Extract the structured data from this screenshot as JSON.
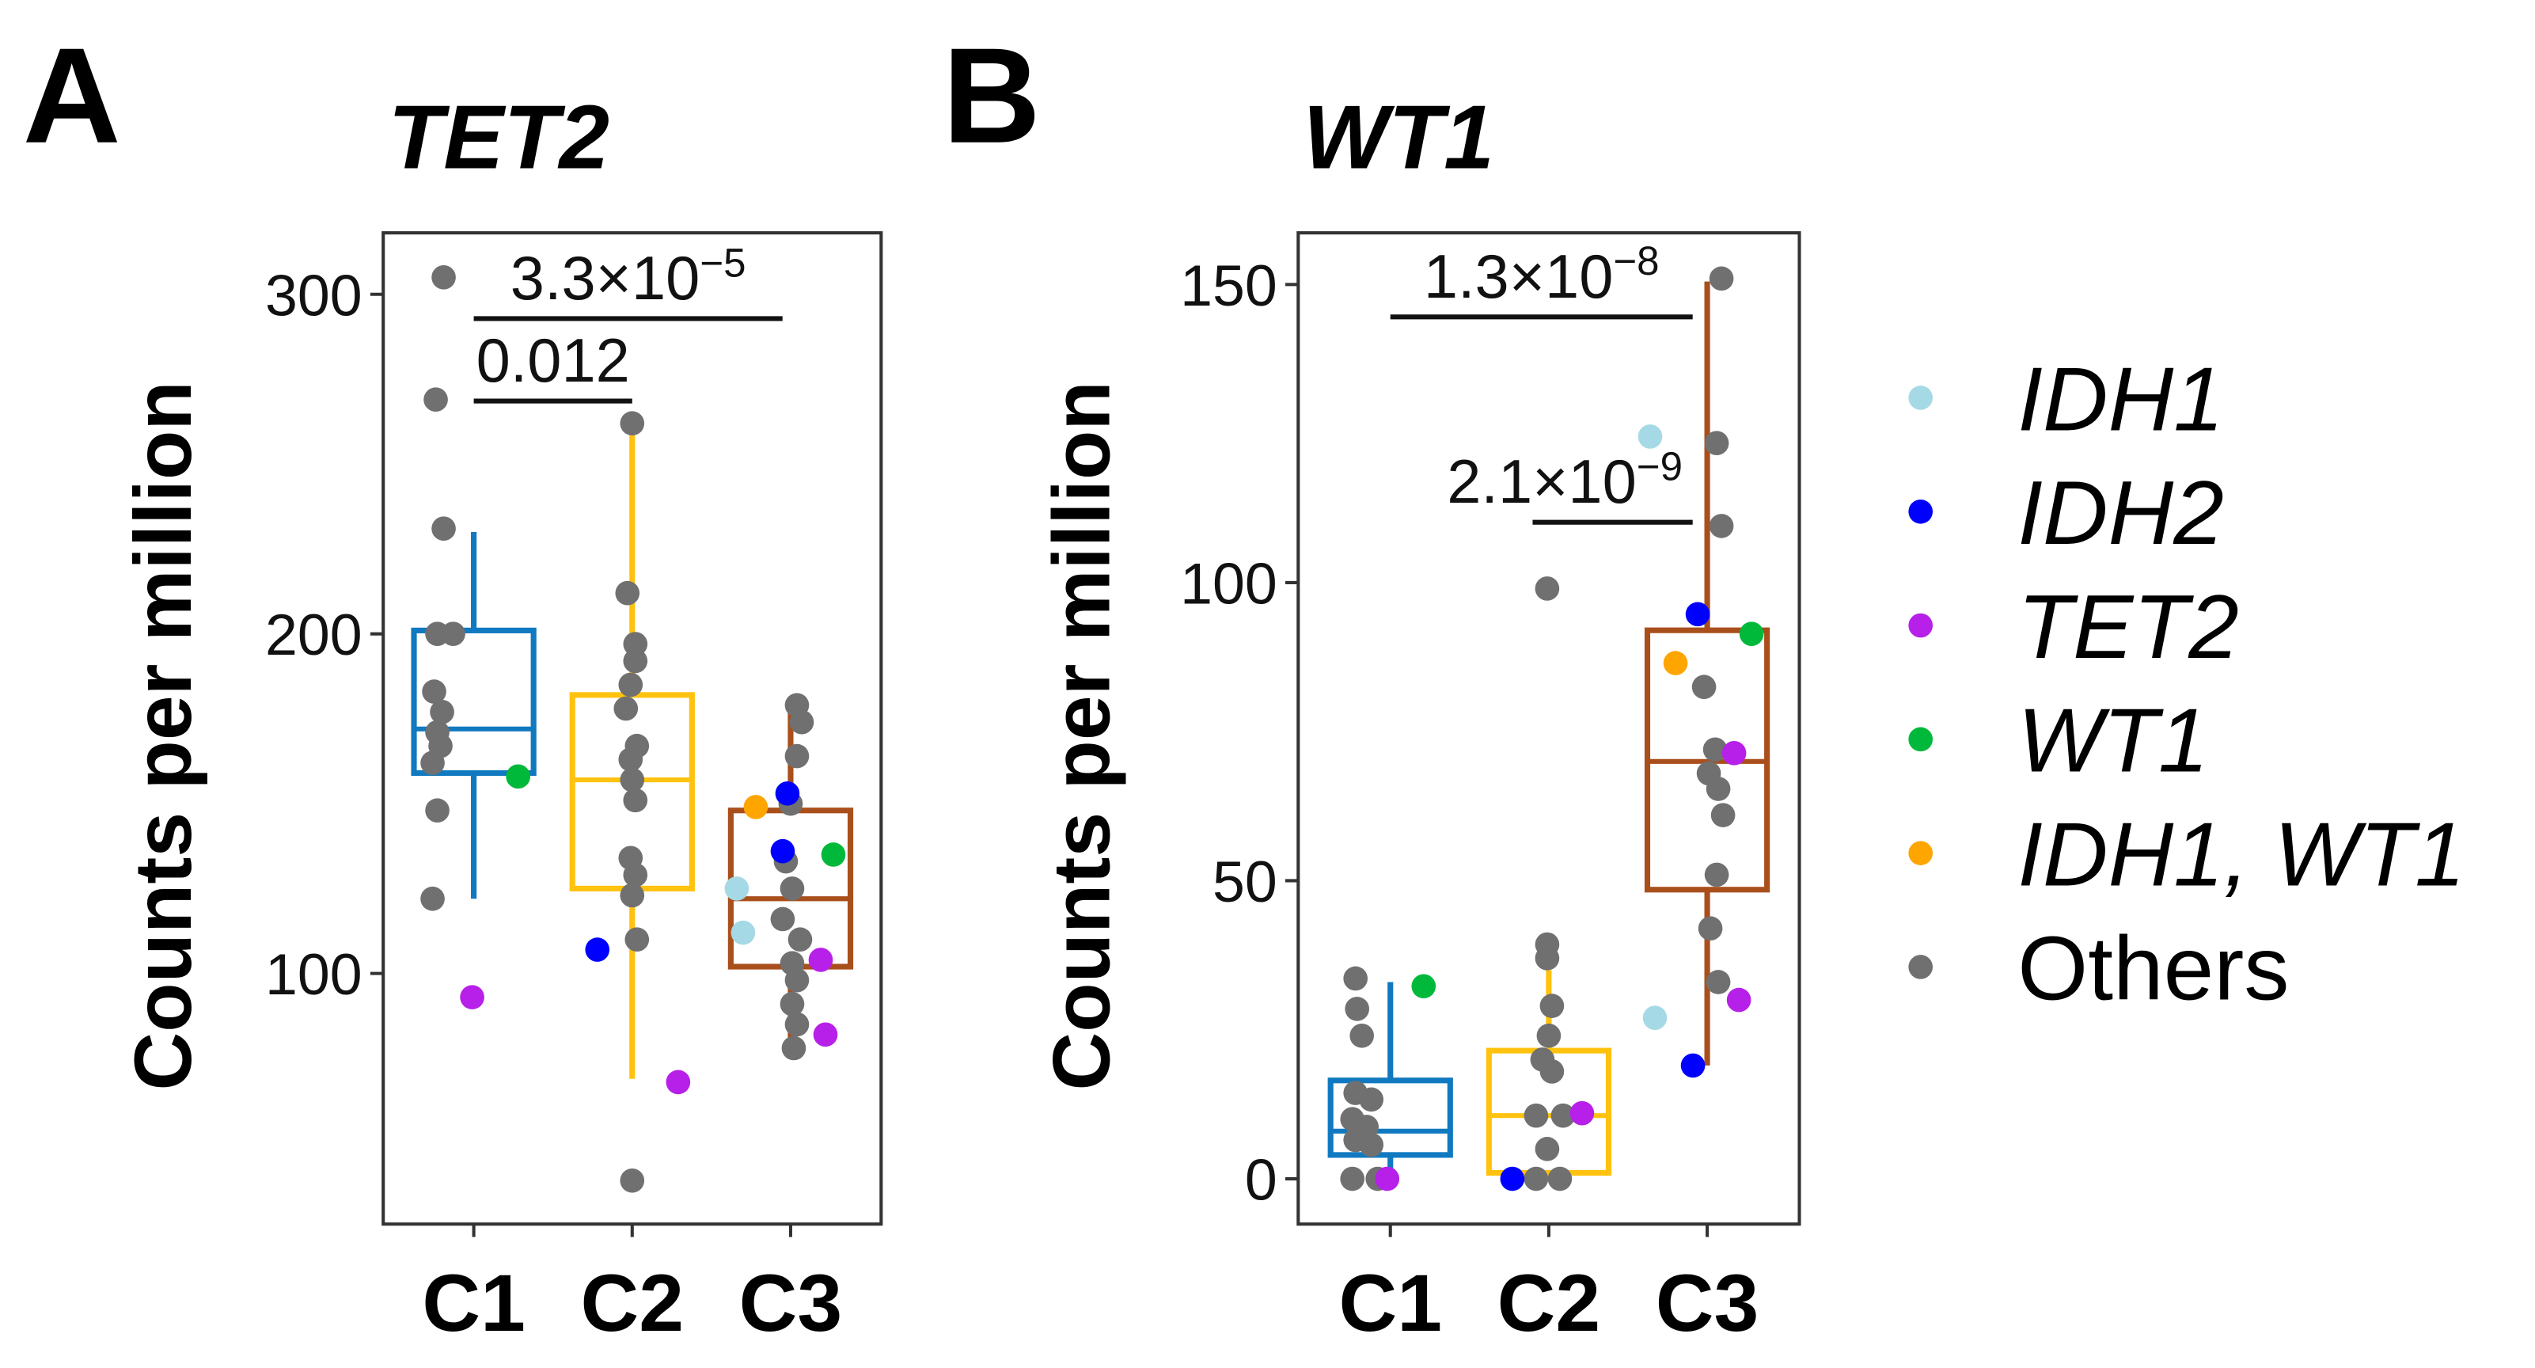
{
  "legend": {
    "title": "",
    "placement": "right",
    "entries": [
      {
        "key": "IDH1",
        "label": "IDH1",
        "italic": true,
        "color": "#a6d9e6"
      },
      {
        "key": "IDH2",
        "label": "IDH2",
        "italic": true,
        "color": "#0000ff"
      },
      {
        "key": "TET2",
        "label": "TET2",
        "italic": true,
        "color": "#b620e8"
      },
      {
        "key": "WT1",
        "label": "WT1",
        "italic": true,
        "color": "#00b93a"
      },
      {
        "key": "IDH1_WT1",
        "label": "IDH1, WT1",
        "italic": true,
        "color": "#ffa500"
      },
      {
        "key": "Others",
        "label": "Others",
        "italic": false,
        "color": "#707070"
      }
    ]
  },
  "group_colors": {
    "C1": "#1179c0",
    "C2": "#ffc20e",
    "C3": "#a94f1b"
  },
  "chart_data": [
    {
      "type": "box",
      "panel": "A",
      "title": "TET2",
      "xlabel": "",
      "ylabel": "Counts per million",
      "categories": [
        "C1",
        "C2",
        "C3"
      ],
      "ylim": [
        30,
        315
      ],
      "yticks": [
        100,
        200,
        300
      ],
      "grid": false,
      "boxes": [
        {
          "group": "C1",
          "whisker_low": 122,
          "q1": 159,
          "median": 172,
          "q3": 201,
          "whisker_high": 230
        },
        {
          "group": "C2",
          "whisker_low": 69,
          "q1": 125,
          "median": 157,
          "q3": 182,
          "whisker_high": 262
        },
        {
          "group": "C3",
          "whisker_low": 77,
          "q1": 102,
          "median": 122,
          "q3": 148,
          "whisker_high": 181
        }
      ],
      "points": [
        {
          "g": "C1",
          "j": -0.19,
          "v": 305,
          "m": "Others"
        },
        {
          "g": "C1",
          "j": -0.24,
          "v": 269,
          "m": "Others"
        },
        {
          "g": "C1",
          "j": -0.19,
          "v": 231,
          "m": "Others"
        },
        {
          "g": "C1",
          "j": -0.23,
          "v": 200,
          "m": "Others"
        },
        {
          "g": "C1",
          "j": -0.13,
          "v": 200,
          "m": "Others"
        },
        {
          "g": "C1",
          "j": -0.25,
          "v": 183,
          "m": "Others"
        },
        {
          "g": "C1",
          "j": -0.2,
          "v": 177,
          "m": "Others"
        },
        {
          "g": "C1",
          "j": -0.23,
          "v": 171,
          "m": "Others"
        },
        {
          "g": "C1",
          "j": -0.21,
          "v": 167,
          "m": "Others"
        },
        {
          "g": "C1",
          "j": -0.26,
          "v": 162,
          "m": "Others"
        },
        {
          "g": "C1",
          "j": -0.23,
          "v": 148,
          "m": "Others"
        },
        {
          "g": "C1",
          "j": -0.26,
          "v": 122,
          "m": "Others"
        },
        {
          "g": "C1",
          "j": 0.28,
          "v": 158,
          "m": "WT1"
        },
        {
          "g": "C1",
          "j": -0.01,
          "v": 93,
          "m": "TET2"
        },
        {
          "g": "C2",
          "j": 0,
          "v": 262,
          "m": "Others"
        },
        {
          "g": "C2",
          "j": -0.03,
          "v": 212,
          "m": "Others"
        },
        {
          "g": "C2",
          "j": 0.02,
          "v": 197,
          "m": "Others"
        },
        {
          "g": "C2",
          "j": 0.02,
          "v": 192,
          "m": "Others"
        },
        {
          "g": "C2",
          "j": -0.01,
          "v": 185,
          "m": "Others"
        },
        {
          "g": "C2",
          "j": -0.04,
          "v": 178,
          "m": "Others"
        },
        {
          "g": "C2",
          "j": 0.03,
          "v": 167,
          "m": "Others"
        },
        {
          "g": "C2",
          "j": -0.01,
          "v": 163,
          "m": "Others"
        },
        {
          "g": "C2",
          "j": 0,
          "v": 157,
          "m": "Others"
        },
        {
          "g": "C2",
          "j": 0.02,
          "v": 151,
          "m": "Others"
        },
        {
          "g": "C2",
          "j": -0.01,
          "v": 134,
          "m": "Others"
        },
        {
          "g": "C2",
          "j": 0.02,
          "v": 129,
          "m": "Others"
        },
        {
          "g": "C2",
          "j": 0,
          "v": 123,
          "m": "Others"
        },
        {
          "g": "C2",
          "j": 0.03,
          "v": 110,
          "m": "Others"
        },
        {
          "g": "C2",
          "j": 0,
          "v": 39,
          "m": "Others"
        },
        {
          "g": "C2",
          "j": -0.22,
          "v": 107,
          "m": "IDH2"
        },
        {
          "g": "C2",
          "j": 0.29,
          "v": 68,
          "m": "TET2"
        },
        {
          "g": "C3",
          "j": 0.04,
          "v": 179,
          "m": "Others"
        },
        {
          "g": "C3",
          "j": 0.07,
          "v": 174,
          "m": "Others"
        },
        {
          "g": "C3",
          "j": 0.04,
          "v": 164,
          "m": "Others"
        },
        {
          "g": "C3",
          "j": 0,
          "v": 150,
          "m": "Others"
        },
        {
          "g": "C3",
          "j": -0.03,
          "v": 133,
          "m": "Others"
        },
        {
          "g": "C3",
          "j": 0.01,
          "v": 125,
          "m": "Others"
        },
        {
          "g": "C3",
          "j": -0.05,
          "v": 116,
          "m": "Others"
        },
        {
          "g": "C3",
          "j": 0.06,
          "v": 110,
          "m": "Others"
        },
        {
          "g": "C3",
          "j": 0.01,
          "v": 103,
          "m": "Others"
        },
        {
          "g": "C3",
          "j": 0.04,
          "v": 98,
          "m": "Others"
        },
        {
          "g": "C3",
          "j": 0.01,
          "v": 91,
          "m": "Others"
        },
        {
          "g": "C3",
          "j": 0.04,
          "v": 85,
          "m": "Others"
        },
        {
          "g": "C3",
          "j": 0.02,
          "v": 78,
          "m": "Others"
        },
        {
          "g": "C3",
          "j": -0.02,
          "v": 153,
          "m": "IDH2"
        },
        {
          "g": "C3",
          "j": -0.05,
          "v": 136,
          "m": "IDH2"
        },
        {
          "g": "C3",
          "j": 0.27,
          "v": 135,
          "m": "WT1"
        },
        {
          "g": "C3",
          "j": -0.22,
          "v": 149,
          "m": "IDH1_WT1"
        },
        {
          "g": "C3",
          "j": -0.34,
          "v": 125,
          "m": "IDH1"
        },
        {
          "g": "C3",
          "j": -0.3,
          "v": 112,
          "m": "IDH1"
        },
        {
          "g": "C3",
          "j": 0.19,
          "v": 104,
          "m": "TET2"
        },
        {
          "g": "C3",
          "j": 0.22,
          "v": 82,
          "m": "TET2"
        }
      ],
      "comparisons": [
        {
          "from": "C1",
          "to": "C3",
          "label_base": "3.3×10",
          "label_exp": "−5",
          "level": 1
        },
        {
          "from": "C1",
          "to": "C2",
          "label_base": "0.012",
          "label_exp": "",
          "level": 2
        }
      ]
    },
    {
      "type": "box",
      "panel": "B",
      "title": "WT1",
      "xlabel": "",
      "ylabel": "Counts per million",
      "categories": [
        "C1",
        "C2",
        "C3"
      ],
      "ylim": [
        -8,
        158
      ],
      "yticks": [
        0,
        50,
        100,
        150
      ],
      "grid": false,
      "boxes": [
        {
          "group": "C1",
          "whisker_low": 0,
          "q1": 4,
          "median": 8,
          "q3": 16.5,
          "whisker_high": 33
        },
        {
          "group": "C2",
          "whisker_low": 1,
          "q1": 1,
          "median": 10.6,
          "q3": 21.5,
          "whisker_high": 35
        },
        {
          "group": "C3",
          "whisker_low": 19,
          "q1": 48.5,
          "median": 70,
          "q3": 92,
          "whisker_high": 150.5
        }
      ],
      "points": [
        {
          "g": "C1",
          "j": -0.22,
          "v": 33.6,
          "m": "Others"
        },
        {
          "g": "C1",
          "j": -0.21,
          "v": 28.5,
          "m": "Others"
        },
        {
          "g": "C1",
          "j": -0.18,
          "v": 24,
          "m": "Others"
        },
        {
          "g": "C1",
          "j": -0.22,
          "v": 14.4,
          "m": "Others"
        },
        {
          "g": "C1",
          "j": -0.12,
          "v": 13.3,
          "m": "Others"
        },
        {
          "g": "C1",
          "j": -0.24,
          "v": 10,
          "m": "Others"
        },
        {
          "g": "C1",
          "j": -0.15,
          "v": 8.7,
          "m": "Others"
        },
        {
          "g": "C1",
          "j": -0.22,
          "v": 6.5,
          "m": "Others"
        },
        {
          "g": "C1",
          "j": -0.12,
          "v": 5.7,
          "m": "Others"
        },
        {
          "g": "C1",
          "j": -0.24,
          "v": 0,
          "m": "Others"
        },
        {
          "g": "C1",
          "j": -0.08,
          "v": 0,
          "m": "Others"
        },
        {
          "g": "C1",
          "j": 0.21,
          "v": 32.3,
          "m": "WT1"
        },
        {
          "g": "C1",
          "j": -0.02,
          "v": 0,
          "m": "TET2"
        },
        {
          "g": "C2",
          "j": -0.01,
          "v": 99,
          "m": "Others"
        },
        {
          "g": "C2",
          "j": -0.01,
          "v": 39.3,
          "m": "Others"
        },
        {
          "g": "C2",
          "j": -0.01,
          "v": 37,
          "m": "Others"
        },
        {
          "g": "C2",
          "j": 0.02,
          "v": 29,
          "m": "Others"
        },
        {
          "g": "C2",
          "j": 0,
          "v": 24,
          "m": "Others"
        },
        {
          "g": "C2",
          "j": -0.04,
          "v": 20,
          "m": "Others"
        },
        {
          "g": "C2",
          "j": 0.02,
          "v": 18,
          "m": "Others"
        },
        {
          "g": "C2",
          "j": -0.08,
          "v": 10.6,
          "m": "Others"
        },
        {
          "g": "C2",
          "j": 0.09,
          "v": 10.6,
          "m": "Others"
        },
        {
          "g": "C2",
          "j": -0.01,
          "v": 5,
          "m": "Others"
        },
        {
          "g": "C2",
          "j": -0.08,
          "v": 0,
          "m": "Others"
        },
        {
          "g": "C2",
          "j": 0.07,
          "v": 0,
          "m": "Others"
        },
        {
          "g": "C2",
          "j": -0.23,
          "v": 0,
          "m": "IDH2"
        },
        {
          "g": "C2",
          "j": 0.21,
          "v": 11,
          "m": "TET2"
        },
        {
          "g": "C3",
          "j": 0.09,
          "v": 151,
          "m": "Others"
        },
        {
          "g": "C3",
          "j": 0.06,
          "v": 123.4,
          "m": "Others"
        },
        {
          "g": "C3",
          "j": 0.09,
          "v": 109.5,
          "m": "Others"
        },
        {
          "g": "C3",
          "j": -0.02,
          "v": 82.5,
          "m": "Others"
        },
        {
          "g": "C3",
          "j": 0.05,
          "v": 72,
          "m": "Others"
        },
        {
          "g": "C3",
          "j": 0.01,
          "v": 68,
          "m": "Others"
        },
        {
          "g": "C3",
          "j": 0.07,
          "v": 65.4,
          "m": "Others"
        },
        {
          "g": "C3",
          "j": 0.1,
          "v": 61,
          "m": "Others"
        },
        {
          "g": "C3",
          "j": 0.06,
          "v": 51,
          "m": "Others"
        },
        {
          "g": "C3",
          "j": 0.02,
          "v": 42,
          "m": "Others"
        },
        {
          "g": "C3",
          "j": 0.07,
          "v": 33,
          "m": "Others"
        },
        {
          "g": "C3",
          "j": -0.36,
          "v": 124.5,
          "m": "IDH1"
        },
        {
          "g": "C3",
          "j": -0.33,
          "v": 27,
          "m": "IDH1"
        },
        {
          "g": "C3",
          "j": -0.06,
          "v": 94.7,
          "m": "IDH2"
        },
        {
          "g": "C3",
          "j": -0.09,
          "v": 19,
          "m": "IDH2"
        },
        {
          "g": "C3",
          "j": 0.28,
          "v": 91.4,
          "m": "WT1"
        },
        {
          "g": "C3",
          "j": -0.2,
          "v": 86.5,
          "m": "IDH1_WT1"
        },
        {
          "g": "C3",
          "j": 0.17,
          "v": 71.4,
          "m": "TET2"
        },
        {
          "g": "C3",
          "j": 0.2,
          "v": 30,
          "m": "TET2"
        }
      ],
      "comparisons": [
        {
          "from": "C1",
          "to": "C3",
          "label_base": "1.3×10",
          "label_exp": "−8",
          "level": 1
        },
        {
          "from": "C2",
          "to": "C3",
          "label_base": "2.1×10",
          "label_exp": "−9",
          "level": 3
        }
      ]
    }
  ]
}
